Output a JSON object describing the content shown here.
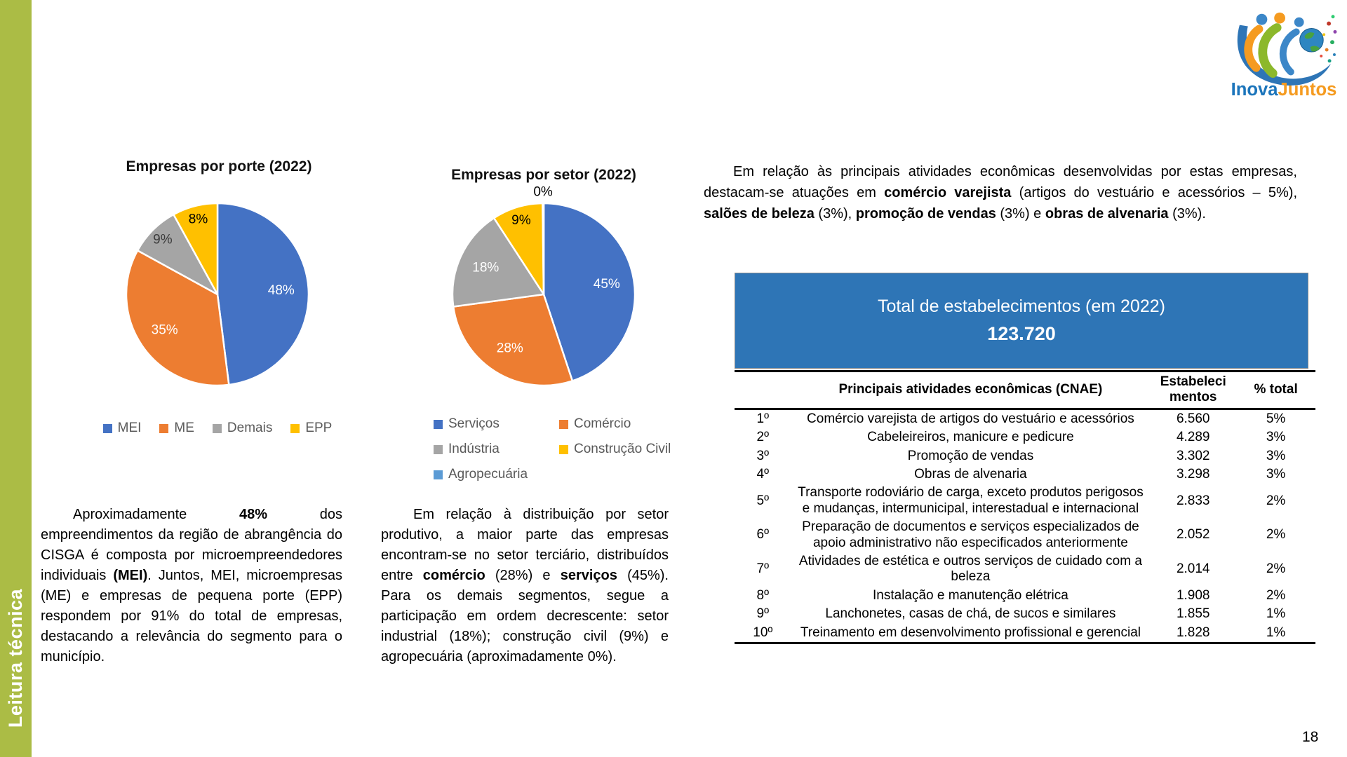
{
  "sidebar": {
    "label": "Leitura técnica"
  },
  "logo": {
    "name": "InovaJuntos",
    "part1": "Inova",
    "part2": "Juntos"
  },
  "page_number": "18",
  "colors": {
    "sidebar_green": "#ABBC45",
    "total_box_blue": "#2E75B6",
    "pie_palette": [
      "#4472C4",
      "#ED7D31",
      "#A5A5A5",
      "#FFC000",
      "#5B9BD5"
    ],
    "legend_text": "#595959"
  },
  "chart_data": [
    {
      "type": "pie",
      "title": "Empresas por porte (2022)",
      "labels": [
        "MEI",
        "ME",
        "Demais",
        "EPP"
      ],
      "values": [
        48,
        35,
        9,
        8
      ],
      "data_labels": [
        "48%",
        "35%",
        "9%",
        "8%"
      ],
      "colors": [
        "#4472C4",
        "#ED7D31",
        "#A5A5A5",
        "#FFC000"
      ],
      "slice_label_colors": [
        "#FFFFFF",
        "#FFFFFF",
        "#3B3B3B",
        "#000000"
      ],
      "legend_position": "bottom"
    },
    {
      "type": "pie",
      "title": "Empresas por setor (2022)",
      "labels": [
        "Serviços",
        "Comércio",
        "Indústria",
        "Construção Civil",
        "Agropecuária"
      ],
      "values": [
        45,
        28,
        18,
        9,
        0.2
      ],
      "data_labels": [
        "45%",
        "28%",
        "18%",
        "9%",
        "0%"
      ],
      "colors": [
        "#4472C4",
        "#ED7D31",
        "#A5A5A5",
        "#FFC000",
        "#5B9BD5"
      ],
      "slice_label_colors": [
        "#FFFFFF",
        "#FFFFFF",
        "#FFFFFF",
        "#000000",
        "#000000"
      ],
      "legend_position": "bottom"
    }
  ],
  "paragraphs": {
    "left": [
      {
        "t": "Aproximadamente "
      },
      {
        "t": "48%",
        "b": true
      },
      {
        "t": " dos empreendimentos da região de abrangência do CISGA é composta por microempreendedores individuais "
      },
      {
        "t": "(MEI)",
        "b": true
      },
      {
        "t": ". Juntos, MEI, microempresas (ME) e empresas de pequena porte (EPP) respondem por 91% do total de empresas, destacando a relevância do segmento para o município."
      }
    ],
    "middle": [
      {
        "t": "Em relação à distribuição por setor produtivo, a maior parte das empresas encontram-se no setor terciário, distribuídos entre "
      },
      {
        "t": "comércio",
        "b": true
      },
      {
        "t": " (28%) e "
      },
      {
        "t": "serviços",
        "b": true
      },
      {
        "t": " (45%). Para os demais segmentos, segue a participação em ordem decrescente: setor industrial (18%); construção civil (9%) e agropecuária (aproximadamente 0%)."
      }
    ],
    "right": [
      {
        "t": "Em relação às principais atividades econômicas desenvolvidas por estas empresas, destacam-se atuações em "
      },
      {
        "t": "comércio varejista",
        "b": true
      },
      {
        "t": " (artigos do vestuário e acessórios – 5%), "
      },
      {
        "t": "salões de beleza",
        "b": true
      },
      {
        "t": " (3%), "
      },
      {
        "t": "promoção de vendas",
        "b": true
      },
      {
        "t": " (3%) e "
      },
      {
        "t": "obras de alvenaria",
        "b": true
      },
      {
        "t": " (3%)."
      }
    ]
  },
  "total_box": {
    "title": "Total de estabelecimentos (em 2022)",
    "value": "123.720"
  },
  "table": {
    "headers": [
      "",
      "Principais atividades econômicas (CNAE)",
      "Estabeleci\nmentos",
      "% total"
    ],
    "rows": [
      [
        "1º",
        "Comércio varejista de artigos do vestuário e acessórios",
        "6.560",
        "5%"
      ],
      [
        "2º",
        "Cabeleireiros, manicure e pedicure",
        "4.289",
        "3%"
      ],
      [
        "3º",
        "Promoção de vendas",
        "3.302",
        "3%"
      ],
      [
        "4º",
        "Obras de alvenaria",
        "3.298",
        "3%"
      ],
      [
        "5º",
        "Transporte rodoviário de carga, exceto produtos perigosos e mudanças, intermunicipal, interestadual e internacional",
        "2.833",
        "2%"
      ],
      [
        "6º",
        "Preparação de documentos e serviços especializados de apoio administrativo não especificados anteriormente",
        "2.052",
        "2%"
      ],
      [
        "7º",
        "Atividades de estética e outros serviços de cuidado com a beleza",
        "2.014",
        "2%"
      ],
      [
        "8º",
        "Instalação e manutenção elétrica",
        "1.908",
        "2%"
      ],
      [
        "9º",
        "Lanchonetes, casas de chá, de sucos e similares",
        "1.855",
        "1%"
      ],
      [
        "10º",
        "Treinamento em desenvolvimento profissional e gerencial",
        "1.828",
        "1%"
      ]
    ]
  }
}
